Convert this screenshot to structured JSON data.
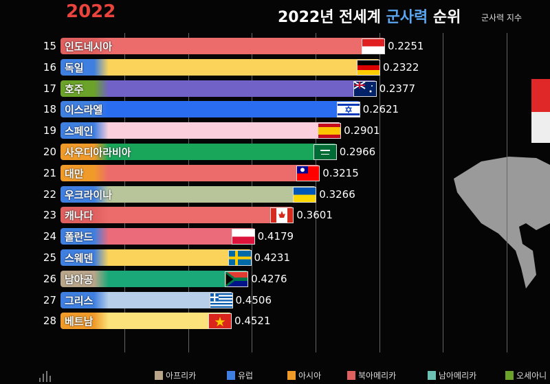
{
  "year": "2022",
  "title": {
    "pre": "2022년 전세계 ",
    "highlight": "군사력",
    "post": " 순위"
  },
  "subtitle": "군사력 지수",
  "chart_data": {
    "type": "bar",
    "orientation": "horizontal",
    "title": "2022년 전세계 군사력 순위",
    "subtitle": "군사력 지수",
    "note": "lower index = longer bar",
    "rows": [
      {
        "rank": "15",
        "name": "인도네시아",
        "value": "0.2251",
        "region": "북아메리카",
        "chip": "#e06060",
        "color": "#ec6b6b",
        "flag": "indonesia"
      },
      {
        "rank": "16",
        "name": "독일",
        "value": "0.2322",
        "region": "유럽",
        "chip": "#3f7fe0",
        "color": "#fbd35a",
        "flag": "germany"
      },
      {
        "rank": "17",
        "name": "호주",
        "value": "0.2377",
        "region": "오세아니아",
        "chip": "#6aa22a",
        "color": "#7062c6",
        "flag": "australia"
      },
      {
        "rank": "18",
        "name": "이스라엘",
        "value": "0.2621",
        "region": "유럽",
        "chip": "#3f7fe0",
        "color": "#2a6df0",
        "flag": "israel"
      },
      {
        "rank": "19",
        "name": "스페인",
        "value": "0.2901",
        "region": "유럽",
        "chip": "#3f7fe0",
        "color": "#fccfdc",
        "flag": "spain"
      },
      {
        "rank": "20",
        "name": "사우디아라비아",
        "value": "0.2966",
        "region": "아시아",
        "chip": "#f09a2a",
        "color": "#19a55a",
        "flag": "saudi"
      },
      {
        "rank": "21",
        "name": "대만",
        "value": "0.3215",
        "region": "아시아",
        "chip": "#f09a2a",
        "color": "#ec6b6b",
        "flag": "taiwan"
      },
      {
        "rank": "22",
        "name": "우크라이나",
        "value": "0.3266",
        "region": "유럽",
        "chip": "#3f7fe0",
        "color": "#b8c49a",
        "flag": "ukraine"
      },
      {
        "rank": "23",
        "name": "캐나다",
        "value": "0.3601",
        "region": "북아메리카",
        "chip": "#e06060",
        "color": "#ec6b6b",
        "flag": "canada"
      },
      {
        "rank": "24",
        "name": "폴란드",
        "value": "0.4179",
        "region": "유럽",
        "chip": "#3f7fe0",
        "color": "#ec6b7a",
        "flag": "poland"
      },
      {
        "rank": "25",
        "name": "스웨덴",
        "value": "0.4231",
        "region": "유럽",
        "chip": "#3f7fe0",
        "color": "#fbd35a",
        "flag": "sweden"
      },
      {
        "rank": "26",
        "name": "남아공",
        "value": "0.4276",
        "region": "아프리카",
        "chip": "#b8a58a",
        "color": "#1aa878",
        "flag": "southafrica"
      },
      {
        "rank": "27",
        "name": "그리스",
        "value": "0.4506",
        "region": "유럽",
        "chip": "#3f7fe0",
        "color": "#b7cfe8",
        "flag": "greece"
      },
      {
        "rank": "28",
        "name": "베트남",
        "value": "0.4521",
        "region": "아시아",
        "chip": "#f09a2a",
        "color": "#fbe27a",
        "flag": "vietnam"
      }
    ],
    "grid": true
  },
  "legend": [
    {
      "label": "아프리카",
      "color": "#b8a58a"
    },
    {
      "label": "유럽",
      "color": "#3f7fe0"
    },
    {
      "label": "아시아",
      "color": "#f09a2a"
    },
    {
      "label": "북아메리카",
      "color": "#e06060"
    },
    {
      "label": "남아메리카",
      "color": "#6cc0b4"
    },
    {
      "label": "오세아니",
      "color": "#6aa22a"
    }
  ]
}
